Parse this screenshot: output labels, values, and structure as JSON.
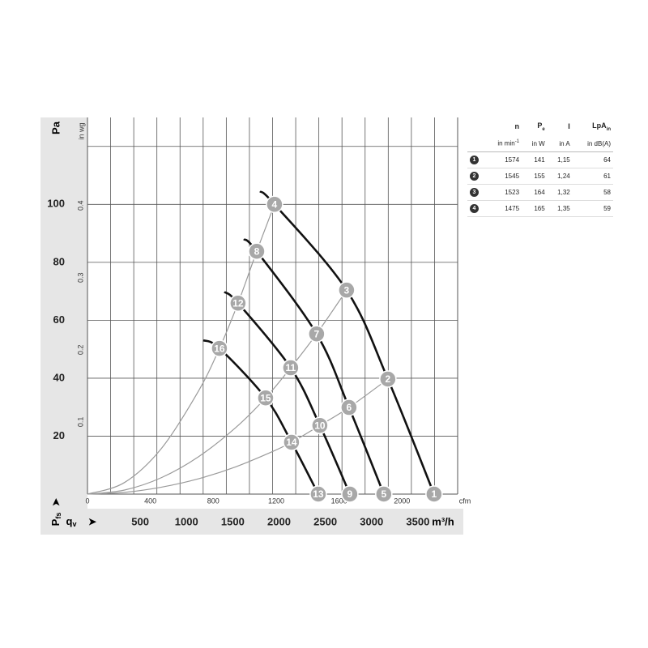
{
  "chart_data": {
    "type": "fan-curve",
    "y_label": "Pa",
    "y2_label": "in wg",
    "x_label": "m³/h",
    "x2_label": "cfm",
    "x_symbol": {
      "main": "q",
      "sub": "v"
    },
    "y_symbol": {
      "main": "P",
      "sub": "fs"
    },
    "xlim": [
      0,
      4000
    ],
    "ylim": [
      0,
      130
    ],
    "x2lim": [
      0,
      2354
    ],
    "y2lim": [
      0,
      0.522
    ],
    "xticks": [
      500,
      1000,
      1500,
      2000,
      2500,
      3000,
      3500
    ],
    "yticks": [
      20,
      40,
      60,
      80,
      100
    ],
    "x2ticks": [
      0,
      400,
      800,
      1200,
      1600,
      2000
    ],
    "y2ticks": [
      0.1,
      0.2,
      0.3,
      0.4
    ],
    "x_gridlines": [
      250,
      500,
      750,
      1000,
      1250,
      1500,
      1750,
      2000,
      2250,
      2500,
      2750,
      3000,
      3250,
      3500,
      3750
    ],
    "y_gridlines": [
      20,
      40,
      60,
      80,
      100,
      120
    ],
    "fan_curves": [
      {
        "color": "#111111",
        "x": [
          1864,
          2021,
          2800,
          3246,
          3745
        ],
        "y": [
          104.5,
          100,
          70.4,
          39.7,
          0
        ]
      },
      {
        "color": "#111111",
        "x": [
          1689,
          1829,
          2476,
          2826,
          3202
        ],
        "y": [
          88,
          83.8,
          55.3,
          29.9,
          0
        ]
      },
      {
        "color": "#111111",
        "x": [
          1479,
          1627,
          2196,
          2511,
          2835
        ],
        "y": [
          69.8,
          65.9,
          43.6,
          23.7,
          0
        ]
      },
      {
        "color": "#111111",
        "x": [
          1251,
          1426,
          1925,
          2205,
          2494
        ],
        "y": [
          53.1,
          50.3,
          33.2,
          17.9,
          0
        ]
      }
    ],
    "system_curves": [
      {
        "color": "#9a9a9a",
        "x": [
          0,
          400,
          800,
          1200,
          1426,
          1627,
          1829,
          2021
        ],
        "y": [
          0,
          4.0,
          15.8,
          35.6,
          50.3,
          65.9,
          83.8,
          100
        ]
      },
      {
        "color": "#9a9a9a",
        "x": [
          0,
          400,
          800,
          1200,
          1600,
          1925,
          2196,
          2476,
          2800
        ],
        "y": [
          0,
          1.4,
          5.7,
          12.9,
          22.9,
          33.2,
          43.6,
          55.3,
          70.4
        ]
      },
      {
        "color": "#9a9a9a",
        "x": [
          0,
          400,
          800,
          1200,
          1600,
          2000,
          2205,
          2511,
          2826,
          3246
        ],
        "y": [
          0,
          0.6,
          2.4,
          5.3,
          9.4,
          14.7,
          17.9,
          23.7,
          29.9,
          39.7
        ]
      }
    ],
    "points_color": "#a8a8a8",
    "points": [
      {
        "label": "1",
        "x": 3745,
        "y": 0
      },
      {
        "label": "2",
        "x": 3246,
        "y": 39.7
      },
      {
        "label": "3",
        "x": 2800,
        "y": 70.4
      },
      {
        "label": "4",
        "x": 2021,
        "y": 100
      },
      {
        "label": "5",
        "x": 3202,
        "y": 0
      },
      {
        "label": "6",
        "x": 2826,
        "y": 29.9
      },
      {
        "label": "7",
        "x": 2476,
        "y": 55.3
      },
      {
        "label": "8",
        "x": 1829,
        "y": 83.8
      },
      {
        "label": "9",
        "x": 2835,
        "y": 0
      },
      {
        "label": "10",
        "x": 2511,
        "y": 23.7
      },
      {
        "label": "11",
        "x": 2196,
        "y": 43.6
      },
      {
        "label": "12",
        "x": 1627,
        "y": 65.9
      },
      {
        "label": "13",
        "x": 2494,
        "y": 0
      },
      {
        "label": "14",
        "x": 2205,
        "y": 17.9
      },
      {
        "label": "15",
        "x": 1925,
        "y": 33.2
      },
      {
        "label": "16",
        "x": 1426,
        "y": 50.3
      }
    ]
  },
  "table": {
    "headers": [
      {
        "main": "n"
      },
      {
        "main": "P",
        "sub": "e"
      },
      {
        "main": "I"
      },
      {
        "main": "LpA",
        "sub": "in"
      }
    ],
    "units": [
      {
        "main": "in min",
        "sup": "-1"
      },
      {
        "main": "in W"
      },
      {
        "main": "in A"
      },
      {
        "main": "in dB(A)"
      }
    ],
    "rows": [
      {
        "id": "1",
        "cells": [
          "1574",
          "141",
          "1,15",
          "64"
        ]
      },
      {
        "id": "2",
        "cells": [
          "1545",
          "155",
          "1,24",
          "61"
        ]
      },
      {
        "id": "3",
        "cells": [
          "1523",
          "164",
          "1,32",
          "58"
        ]
      },
      {
        "id": "4",
        "cells": [
          "1475",
          "165",
          "1,35",
          "59"
        ]
      }
    ]
  }
}
